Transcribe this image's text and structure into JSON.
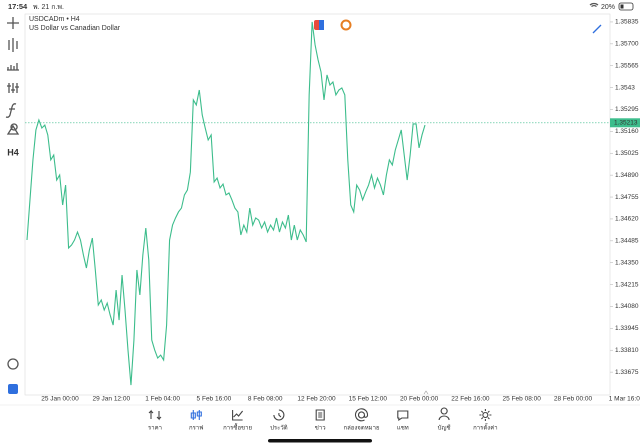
{
  "status_bar": {
    "time": "17:54",
    "date": "พ. 21 ก.พ.",
    "battery": "20%"
  },
  "chart": {
    "type": "line",
    "symbol": "USDCADm • H4",
    "description": "US Dollar vs Canadian Dollar",
    "timeframe_button": "H4",
    "color": "#3dbd8c",
    "ylim": [
      1.33534,
      1.35884
    ],
    "yticks": [
      1.35835,
      {
        "value": 1.357,
        "label": "1.35700"
      },
      1.35565,
      1.3543,
      1.35295,
      {
        "value": 1.3516,
        "label": "1.35160"
      },
      1.35025,
      {
        "value": 1.3489,
        "label": "1.34890"
      },
      1.34755,
      {
        "value": 1.3462,
        "label": "1.34620"
      },
      1.34485,
      {
        "value": 1.3435,
        "label": "1.34350"
      },
      1.34215,
      {
        "value": 1.3408,
        "label": "1.34080"
      },
      1.33945,
      {
        "value": 1.3381,
        "label": "1.33810"
      },
      1.33675
    ],
    "x_labels": [
      "25 Jan 00:00",
      "29 Jan 12:00",
      "1 Feb 04:00",
      "5 Feb 16:00",
      "8 Feb 08:00",
      "12 Feb 20:00",
      "15 Feb 12:00",
      "20 Feb 00:00",
      "22 Feb 16:00",
      "25 Feb 08:00",
      "28 Feb 00:00",
      "1 Mar 16:0"
    ],
    "current_price": 1.35213,
    "values": [
      1.3449,
      1.34737,
      1.34984,
      1.35169,
      1.3523,
      1.35181,
      1.35199,
      1.35138,
      1.34984,
      1.35014,
      1.3486,
      1.34891,
      1.34706,
      1.34829,
      1.34441,
      1.34459,
      1.3449,
      1.34539,
      1.3449,
      1.34397,
      1.34317,
      1.34428,
      1.34502,
      1.34305,
      1.34089,
      1.3412,
      1.34058,
      1.34101,
      1.34027,
      1.33965,
      1.34181,
      1.33996,
      1.34274,
      1.34058,
      1.33811,
      1.33595,
      1.33873,
      1.34305,
      1.34151,
      1.34397,
      1.34564,
      1.34367,
      1.33873,
      1.33811,
      1.33762,
      1.3378,
      1.3375,
      1.33965,
      1.3449,
      1.34582,
      1.34626,
      1.34663,
      1.34687,
      1.34768,
      1.34798,
      1.34909,
      1.35354,
      1.35323,
      1.35415,
      1.35261,
      1.35181,
      1.35107,
      1.35138,
      1.34848,
      1.34872,
      1.34811,
      1.34835,
      1.34768,
      1.3478,
      1.34737,
      1.34687,
      1.34663,
      1.34521,
      1.34582,
      1.34539,
      1.34687,
      1.34582,
      1.34626,
      1.34613,
      1.34564,
      1.34601,
      1.34539,
      1.34582,
      1.34552,
      1.34626,
      1.34539,
      1.34601,
      1.34564,
      1.34644,
      1.3449,
      1.34582,
      1.3449,
      1.34552,
      1.34521,
      1.34478,
      1.35385,
      1.35835,
      1.35693,
      1.35601,
      1.35526,
      1.35354,
      1.35508,
      1.35446,
      1.35465,
      1.35385,
      1.35415,
      1.35428,
      1.35385,
      1.34984,
      1.34706,
      1.34663,
      1.34829,
      1.34798,
      1.34737,
      1.34786,
      1.34829,
      1.34891,
      1.34811,
      1.34872,
      1.34829,
      1.34768,
      1.34891,
      1.34984,
      1.34953,
      1.35045,
      1.35107,
      1.35169,
      1.35014,
      1.3486,
      1.35014,
      1.35206,
      1.35206,
      1.35058,
      1.35138,
      1.35199
    ]
  },
  "nav": [
    {
      "label": "ราคา"
    },
    {
      "label": "กราฟ"
    },
    {
      "label": "การซื้อขาย"
    },
    {
      "label": "ประวัติ"
    },
    {
      "label": "ข่าว"
    },
    {
      "label": "กล่องจดหมาย"
    },
    {
      "label": "แชท"
    },
    {
      "label": "บัญชี"
    },
    {
      "label": "การตั้งค่า"
    }
  ]
}
